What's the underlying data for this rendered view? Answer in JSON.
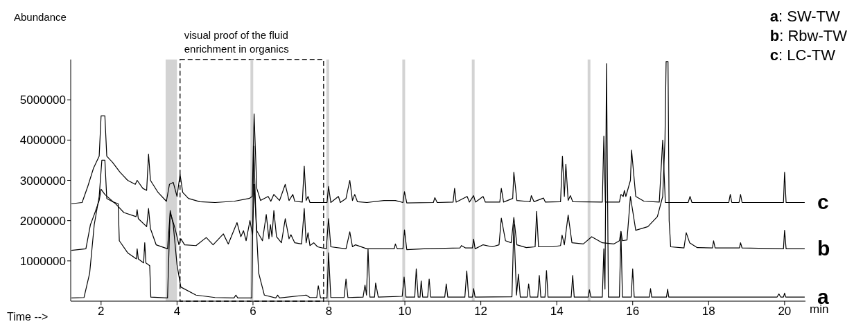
{
  "chart_data": {
    "type": "line",
    "ylabel": "Abundance",
    "xlabel": "Time -->",
    "annotations": [
      "a: SW-TW",
      "b: Rbw-TW",
      "c: LC-TW",
      "min"
    ],
    "xlim": [
      1.2,
      20.55
    ],
    "xticks": [
      2,
      4,
      6,
      8,
      10,
      12,
      14,
      16,
      18,
      20
    ],
    "ylim": [
      0,
      6000000
    ],
    "yticks": [
      1000000,
      2000000,
      3000000,
      4000000,
      5000000
    ],
    "grid": false,
    "legend": false,
    "marker": "none",
    "line_style": "solid",
    "bands": [
      {
        "axis": "x",
        "from": 3.7,
        "to": 4.0,
        "color": "#d3d3d3"
      },
      {
        "axis": "x",
        "from": 4.08,
        "to": 7.86,
        "color": "#ffffff",
        "label": "visual proof of the fluid enrichment in organics"
      }
    ],
    "ref_lines": [
      {
        "axis": "x",
        "value": 5.97,
        "color": "#d3d3d3"
      },
      {
        "axis": "x",
        "value": 7.97,
        "color": "#d3d3d3"
      },
      {
        "axis": "x",
        "value": 9.97,
        "color": "#d3d3d3"
      },
      {
        "axis": "x",
        "value": 11.8,
        "color": "#d3d3d3"
      },
      {
        "axis": "x",
        "value": 14.85,
        "color": "#d3d3d3"
      }
    ],
    "series": [
      {
        "name": "a",
        "color": "#000000",
        "x": [
          1.22,
          1.55,
          1.7,
          1.82,
          1.95,
          2.02,
          2.1,
          2.15,
          2.3,
          2.45,
          2.48,
          2.7,
          2.93,
          2.95,
          2.98,
          3.12,
          3.15,
          3.18,
          3.28,
          3.31,
          3.75,
          3.82,
          3.9,
          4.0,
          4.1,
          4.5,
          5.0,
          5.5,
          5.55,
          5.6,
          5.97,
          6.02,
          6.08,
          6.15,
          6.3,
          6.6,
          6.65,
          6.7,
          7.4,
          7.5,
          7.68,
          7.72,
          7.78,
          7.95,
          7.99,
          8.05,
          8.4,
          8.45,
          8.5,
          8.9,
          8.95,
          8.99,
          9.03,
          9.08,
          9.2,
          9.23,
          9.3,
          9.93,
          9.98,
          10.03,
          10.26,
          10.3,
          10.35,
          10.4,
          10.43,
          10.47,
          10.6,
          10.64,
          10.68,
          11.05,
          11.09,
          11.13,
          11.58,
          11.63,
          11.68,
          11.78,
          11.81,
          11.85,
          12.82,
          12.87,
          12.94,
          12.99,
          13.04,
          13.22,
          13.26,
          13.3,
          13.5,
          13.54,
          13.58,
          13.69,
          13.73,
          13.77,
          14.38,
          14.42,
          14.46,
          14.83,
          14.86,
          14.9,
          15.2,
          15.24,
          15.27,
          15.31,
          15.36,
          15.65,
          15.69,
          15.73,
          15.96,
          16.0,
          16.04,
          16.44,
          16.47,
          16.5,
          16.89,
          16.92,
          16.95,
          19.8,
          19.85,
          19.9,
          19.97,
          20.0,
          20.03,
          20.53
        ],
        "values": [
          80000,
          90000,
          700000,
          1900000,
          2600000,
          3500000,
          3500000,
          2550000,
          2470000,
          2420000,
          1500000,
          1200000,
          1050000,
          1300000,
          1050000,
          950000,
          1450000,
          950000,
          880000,
          100000,
          80000,
          2250000,
          1900000,
          900000,
          350000,
          150000,
          90000,
          80000,
          150000,
          80000,
          80000,
          3850000,
          2000000,
          700000,
          150000,
          80000,
          150000,
          80000,
          150000,
          90000,
          90000,
          380000,
          80000,
          80000,
          1200000,
          90000,
          90000,
          550000,
          90000,
          100000,
          400000,
          150000,
          1300000,
          100000,
          100000,
          450000,
          100000,
          120000,
          600000,
          100000,
          100000,
          800000,
          100000,
          100000,
          500000,
          100000,
          100000,
          550000,
          100000,
          100000,
          430000,
          100000,
          100000,
          750000,
          100000,
          100000,
          310000,
          100000,
          110000,
          1900000,
          150000,
          670000,
          100000,
          100000,
          430000,
          100000,
          100000,
          640000,
          100000,
          100000,
          760000,
          100000,
          100000,
          640000,
          100000,
          100000,
          280000,
          100000,
          100000,
          1300000,
          300000,
          5900000,
          100000,
          100000,
          1730000,
          100000,
          100000,
          800000,
          100000,
          100000,
          310000,
          100000,
          100000,
          300000,
          100000,
          100000,
          180000,
          100000,
          100000,
          200000,
          100000,
          100000
        ]
      },
      {
        "name": "b",
        "color": "#000000",
        "x": [
          1.22,
          1.6,
          1.72,
          1.82,
          1.95,
          2.0,
          2.1,
          2.4,
          2.6,
          2.92,
          2.95,
          2.98,
          3.2,
          3.25,
          3.3,
          3.45,
          3.75,
          3.82,
          3.95,
          4.05,
          4.1,
          4.2,
          4.5,
          4.77,
          4.95,
          5.22,
          5.35,
          5.58,
          5.68,
          5.75,
          5.82,
          5.92,
          5.99,
          6.03,
          6.1,
          6.25,
          6.35,
          6.42,
          6.46,
          6.5,
          6.55,
          6.62,
          6.75,
          6.85,
          6.95,
          7.0,
          7.1,
          7.28,
          7.35,
          7.4,
          7.45,
          7.5,
          7.6,
          7.7,
          7.93,
          7.99,
          8.05,
          8.45,
          8.55,
          8.62,
          8.7,
          9.0,
          9.72,
          9.75,
          9.8,
          9.95,
          9.99,
          10.05,
          10.5,
          11.45,
          11.49,
          11.6,
          11.78,
          11.81,
          11.85,
          12.06,
          12.3,
          12.48,
          12.54,
          12.65,
          12.8,
          12.87,
          12.95,
          13.2,
          13.43,
          13.47,
          13.52,
          13.9,
          14.1,
          14.14,
          14.2,
          14.3,
          14.4,
          14.7,
          14.92,
          15.2,
          15.5,
          15.65,
          15.69,
          15.73,
          15.85,
          15.94,
          16.08,
          16.4,
          16.65,
          16.79,
          16.85,
          16.88,
          16.93,
          16.96,
          17.0,
          17.35,
          17.41,
          17.5,
          17.7,
          18.1,
          18.13,
          18.17,
          18.81,
          18.84,
          18.88,
          19.97,
          20.0,
          20.04,
          20.53
        ],
        "values": [
          1260000,
          1300000,
          1900000,
          2150000,
          2500000,
          2780000,
          2650000,
          2400000,
          2200000,
          2100000,
          2270000,
          2050000,
          1850000,
          2300000,
          1800000,
          1400000,
          1300000,
          2200000,
          1800000,
          1400000,
          1550000,
          1400000,
          1380000,
          1580000,
          1400000,
          1670000,
          1420000,
          1950000,
          1600000,
          1750000,
          1500000,
          2000000,
          1650000,
          2900000,
          1750000,
          1500000,
          2150000,
          1550000,
          1900000,
          1600000,
          2250000,
          1600000,
          1450000,
          2050000,
          1550000,
          1650000,
          1450000,
          1420000,
          2300000,
          1450000,
          1700000,
          1380000,
          1450000,
          1350000,
          1300000,
          2050000,
          1350000,
          1300000,
          1720000,
          1350000,
          1400000,
          1300000,
          1300000,
          1420000,
          1300000,
          1300000,
          1770000,
          1280000,
          1300000,
          1320000,
          1380000,
          1320000,
          1320000,
          1540000,
          1300000,
          1400000,
          1350000,
          1400000,
          2060000,
          1500000,
          1450000,
          2080000,
          1400000,
          1330000,
          1350000,
          2230000,
          1350000,
          1350000,
          1380000,
          1640000,
          1400000,
          2140000,
          1450000,
          1420000,
          1600000,
          1450000,
          1420000,
          1500000,
          1730000,
          1500000,
          1520000,
          2600000,
          1760000,
          1850000,
          2100000,
          2600000,
          4000000,
          5950000,
          5950000,
          2000000,
          1350000,
          1320000,
          1700000,
          1450000,
          1330000,
          1320000,
          1500000,
          1320000,
          1320000,
          1450000,
          1320000,
          1300000,
          1760000,
          1300000,
          1300000
        ]
      },
      {
        "name": "c",
        "color": "#000000",
        "x": [
          1.22,
          1.5,
          1.65,
          1.8,
          1.95,
          2.0,
          2.1,
          2.15,
          2.3,
          2.5,
          2.7,
          2.9,
          2.95,
          3.1,
          3.2,
          3.25,
          3.3,
          3.5,
          3.72,
          3.8,
          3.9,
          4.0,
          4.08,
          4.15,
          4.3,
          4.6,
          5.0,
          5.5,
          5.9,
          5.98,
          6.03,
          6.1,
          6.2,
          6.4,
          6.47,
          6.55,
          6.7,
          6.85,
          6.95,
          7.05,
          7.1,
          7.3,
          7.35,
          7.4,
          7.45,
          7.5,
          7.95,
          7.99,
          8.05,
          8.25,
          8.3,
          8.45,
          8.55,
          8.62,
          8.68,
          8.75,
          9.0,
          9.45,
          9.75,
          9.95,
          9.99,
          10.05,
          10.75,
          10.79,
          10.85,
          11.27,
          11.31,
          11.35,
          11.64,
          11.7,
          11.81,
          11.86,
          12.06,
          12.12,
          12.5,
          12.54,
          12.6,
          12.84,
          12.87,
          12.95,
          13.3,
          13.33,
          13.4,
          13.65,
          13.7,
          14.1,
          14.15,
          14.2,
          14.24,
          14.3,
          14.36,
          14.42,
          15.2,
          15.24,
          15.28,
          15.65,
          15.69,
          15.75,
          15.78,
          15.82,
          15.94,
          15.97,
          16.08,
          16.3,
          16.7,
          16.79,
          16.86,
          17.46,
          17.51,
          17.56,
          18.53,
          18.57,
          18.61,
          18.8,
          18.84,
          18.88,
          19.97,
          20.0,
          20.04,
          20.53
        ],
        "values": [
          2420000,
          2450000,
          2850000,
          3300000,
          3600000,
          4600000,
          4600000,
          3600000,
          3450000,
          3200000,
          3000000,
          2900000,
          3000000,
          2800000,
          2750000,
          3650000,
          3000000,
          2700000,
          2480000,
          2900000,
          2950000,
          2600000,
          3150000,
          2700000,
          2550000,
          2470000,
          2450000,
          2480000,
          2550000,
          2600000,
          4650000,
          2800000,
          2500000,
          2600000,
          2480000,
          2650000,
          2500000,
          2900000,
          2500000,
          2650000,
          2480000,
          2460000,
          3350000,
          2500000,
          2600000,
          2450000,
          2450000,
          2850000,
          2450000,
          2600000,
          2450000,
          2550000,
          3000000,
          2500000,
          2650000,
          2470000,
          2450000,
          2500000,
          2500000,
          2450000,
          2720000,
          2440000,
          2450000,
          2570000,
          2450000,
          2460000,
          2800000,
          2460000,
          2600000,
          2460000,
          2620000,
          2460000,
          2600000,
          2460000,
          2460000,
          2800000,
          2460000,
          2550000,
          3200000,
          2500000,
          2470000,
          2620000,
          2470000,
          2560000,
          2460000,
          2470000,
          3600000,
          2600000,
          3400000,
          2500000,
          2620000,
          2470000,
          2460000,
          4100000,
          2460000,
          2460000,
          2650000,
          2600000,
          2750000,
          2600000,
          3000000,
          3750000,
          2600000,
          2480000,
          2460000,
          4000000,
          2450000,
          2450000,
          2600000,
          2450000,
          2450000,
          2650000,
          2450000,
          2450000,
          2650000,
          2450000,
          2450000,
          3200000,
          2450000,
          2450000
        ]
      }
    ]
  }
}
